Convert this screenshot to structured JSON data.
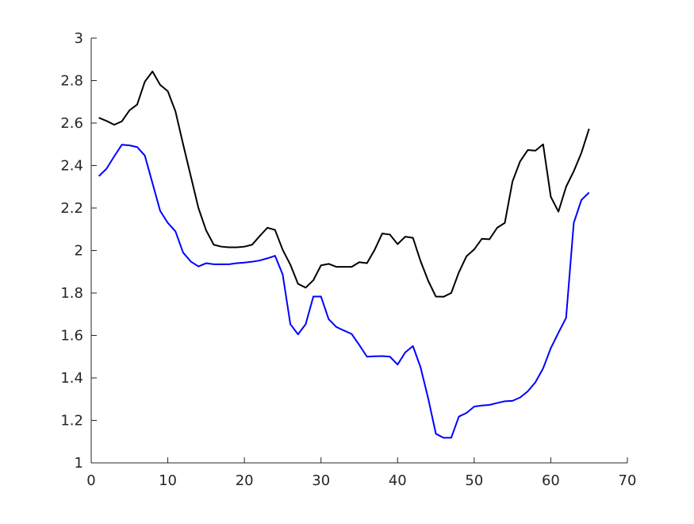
{
  "chart_data": {
    "type": "line",
    "title": "",
    "xlabel": "",
    "ylabel": "",
    "xlim": [
      0,
      70
    ],
    "ylim": [
      1,
      3
    ],
    "xticks": [
      0,
      10,
      20,
      30,
      40,
      50,
      60,
      70
    ],
    "yticks": [
      1,
      1.2,
      1.4,
      1.6,
      1.8,
      2,
      2.2,
      2.4,
      2.6,
      2.8,
      3
    ],
    "xtick_labels": [
      "0",
      "10",
      "20",
      "30",
      "40",
      "50",
      "60",
      "70"
    ],
    "ytick_labels": [
      "1",
      "1.2",
      "1.4",
      "1.6",
      "1.8",
      "2",
      "2.2",
      "2.4",
      "2.6",
      "2.8",
      "3"
    ],
    "grid": false,
    "legend": "none",
    "x": [
      1,
      2,
      3,
      4,
      5,
      6,
      7,
      8,
      9,
      10,
      11,
      12,
      13,
      14,
      15,
      16,
      17,
      18,
      19,
      20,
      21,
      22,
      23,
      24,
      25,
      26,
      27,
      28,
      29,
      30,
      31,
      32,
      33,
      34,
      35,
      36,
      37,
      38,
      39,
      40,
      41,
      42,
      43,
      44,
      45,
      46,
      47,
      48,
      49,
      50,
      51,
      52,
      53,
      54,
      55,
      56,
      57,
      58,
      59,
      60,
      61,
      62,
      63,
      64,
      65
    ],
    "series": [
      {
        "color": "#000000",
        "values": [
          2.625,
          2.61,
          2.592,
          2.608,
          2.66,
          2.687,
          2.795,
          2.843,
          2.78,
          2.75,
          2.655,
          2.5,
          2.35,
          2.2,
          2.095,
          2.027,
          2.018,
          2.015,
          2.015,
          2.018,
          2.027,
          2.068,
          2.107,
          2.097,
          2.003,
          1.933,
          1.843,
          1.825,
          1.86,
          1.93,
          1.937,
          1.923,
          1.923,
          1.923,
          1.945,
          1.94,
          2.003,
          2.08,
          2.075,
          2.03,
          2.065,
          2.06,
          1.95,
          1.857,
          1.783,
          1.782,
          1.8,
          1.897,
          1.973,
          2.005,
          2.055,
          2.053,
          2.107,
          2.13,
          2.325,
          2.42,
          2.473,
          2.47,
          2.5,
          2.253,
          2.183,
          2.3,
          2.373,
          2.46,
          2.573
        ]
      },
      {
        "color": "#0000ff",
        "values": [
          2.35,
          2.385,
          2.443,
          2.498,
          2.495,
          2.487,
          2.447,
          2.317,
          2.187,
          2.13,
          2.09,
          1.99,
          1.948,
          1.925,
          1.94,
          1.935,
          1.935,
          1.935,
          1.94,
          1.943,
          1.947,
          1.953,
          1.963,
          1.975,
          1.887,
          1.653,
          1.605,
          1.653,
          1.783,
          1.783,
          1.677,
          1.64,
          1.623,
          1.607,
          1.555,
          1.5,
          1.502,
          1.503,
          1.5,
          1.463,
          1.52,
          1.55,
          1.45,
          1.303,
          1.137,
          1.118,
          1.118,
          1.218,
          1.235,
          1.265,
          1.27,
          1.273,
          1.282,
          1.29,
          1.292,
          1.308,
          1.337,
          1.38,
          1.445,
          1.54,
          1.613,
          1.683,
          2.13,
          2.238,
          2.273
        ]
      }
    ]
  }
}
